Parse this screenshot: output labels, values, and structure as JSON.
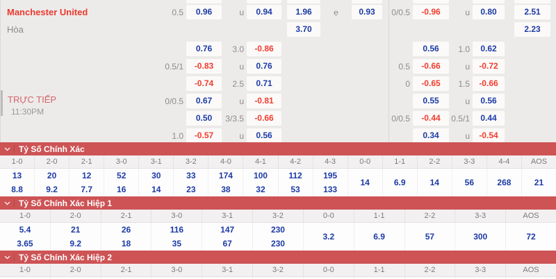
{
  "colors": {
    "band_red": "#cd5355",
    "odds_blue": "#1c3aa6",
    "odds_red": "#f23c2e",
    "team_red": "#e93a2e",
    "live_red": "#d46767",
    "label_gray": "#8e8b8b",
    "top_background": "#edeaea"
  },
  "odds_table": {
    "team_name": "Manchester United",
    "draw_label": "Hòa",
    "live_label": "TRỰC TIẾP",
    "kickoff_time": "11:30PM",
    "rows": [
      {
        "left": [
          "0.5",
          "0.96",
          "u",
          "0.94",
          "1.96",
          "e",
          "0.93"
        ],
        "right": [
          "0/0.5",
          "-0.96",
          "u",
          "0.80",
          "2.51"
        ]
      },
      {
        "left": [
          "",
          "",
          "",
          "",
          "3.70",
          "",
          ""
        ],
        "right": [
          "",
          "",
          "",
          "",
          "2.23"
        ]
      },
      {
        "left": [
          "",
          "0.76",
          "3.0",
          "-0.86",
          "",
          "",
          ""
        ],
        "right": [
          "",
          "0.56",
          "1.0",
          "0.62",
          ""
        ]
      },
      {
        "left": [
          "0.5/1",
          "-0.83",
          "u",
          "0.76",
          "",
          "",
          ""
        ],
        "right": [
          "0.5",
          "-0.66",
          "u",
          "-0.72",
          ""
        ]
      },
      {
        "left": [
          "",
          "-0.74",
          "2.5",
          "0.71",
          "",
          "",
          ""
        ],
        "right": [
          "0",
          "-0.65",
          "1.5",
          "-0.66",
          ""
        ]
      },
      {
        "left": [
          "0/0.5",
          "0.67",
          "u",
          "-0.81",
          "",
          "",
          ""
        ],
        "right": [
          "",
          "0.55",
          "u",
          "0.56",
          ""
        ]
      },
      {
        "left": [
          "",
          "0.50",
          "3/3.5",
          "-0.66",
          "",
          "",
          ""
        ],
        "right": [
          "0/0.5",
          "-0.44",
          "0.5/1",
          "0.44",
          ""
        ]
      },
      {
        "left": [
          "1.0",
          "-0.57",
          "u",
          "0.56",
          "",
          "",
          ""
        ],
        "right": [
          "",
          "0.34",
          "u",
          "-0.54",
          ""
        ]
      }
    ]
  },
  "sections": [
    {
      "title": "Tỷ Số Chính Xác",
      "columns": [
        {
          "label": "1-0",
          "values": [
            "13",
            "8.8"
          ]
        },
        {
          "label": "2-0",
          "values": [
            "20",
            "9.2"
          ]
        },
        {
          "label": "2-1",
          "values": [
            "12",
            "7.7"
          ]
        },
        {
          "label": "3-0",
          "values": [
            "52",
            "16"
          ]
        },
        {
          "label": "3-1",
          "values": [
            "30",
            "14"
          ]
        },
        {
          "label": "3-2",
          "values": [
            "33",
            "23"
          ]
        },
        {
          "label": "4-0",
          "values": [
            "174",
            "38"
          ]
        },
        {
          "label": "4-1",
          "values": [
            "100",
            "32"
          ]
        },
        {
          "label": "4-2",
          "values": [
            "112",
            "53"
          ]
        },
        {
          "label": "4-3",
          "values": [
            "195",
            "133"
          ]
        },
        {
          "label": "0-0",
          "values": [
            "14"
          ]
        },
        {
          "label": "1-1",
          "values": [
            "6.9"
          ]
        },
        {
          "label": "2-2",
          "values": [
            "14"
          ]
        },
        {
          "label": "3-3",
          "values": [
            "56"
          ]
        },
        {
          "label": "4-4",
          "values": [
            "268"
          ]
        },
        {
          "label": "AOS",
          "values": [
            "21"
          ]
        }
      ]
    },
    {
      "title": "Tỷ Số Chính Xác Hiệp 1",
      "columns": [
        {
          "label": "1-0",
          "values": [
            "5.4",
            "3.65"
          ]
        },
        {
          "label": "2-0",
          "values": [
            "21",
            "9.2"
          ]
        },
        {
          "label": "2-1",
          "values": [
            "26",
            "18"
          ]
        },
        {
          "label": "3-0",
          "values": [
            "116",
            "35"
          ]
        },
        {
          "label": "3-1",
          "values": [
            "147",
            "67"
          ]
        },
        {
          "label": "3-2",
          "values": [
            "230",
            "230"
          ]
        },
        {
          "label": "0-0",
          "values": [
            "3.2"
          ]
        },
        {
          "label": "1-1",
          "values": [
            "6.9"
          ]
        },
        {
          "label": "2-2",
          "values": [
            "57"
          ]
        },
        {
          "label": "3-3",
          "values": [
            "300"
          ]
        },
        {
          "label": "AOS",
          "values": [
            "72"
          ]
        }
      ]
    },
    {
      "title": "Tỷ Số Chính Xác Hiệp 2",
      "columns": [
        {
          "label": "1-0",
          "values": []
        },
        {
          "label": "2-0",
          "values": []
        },
        {
          "label": "2-1",
          "values": []
        },
        {
          "label": "3-0",
          "values": []
        },
        {
          "label": "3-1",
          "values": []
        },
        {
          "label": "3-2",
          "values": []
        },
        {
          "label": "0-0",
          "values": []
        },
        {
          "label": "1-1",
          "values": []
        },
        {
          "label": "2-2",
          "values": []
        },
        {
          "label": "3-3",
          "values": []
        },
        {
          "label": "AOS",
          "values": []
        }
      ]
    }
  ]
}
